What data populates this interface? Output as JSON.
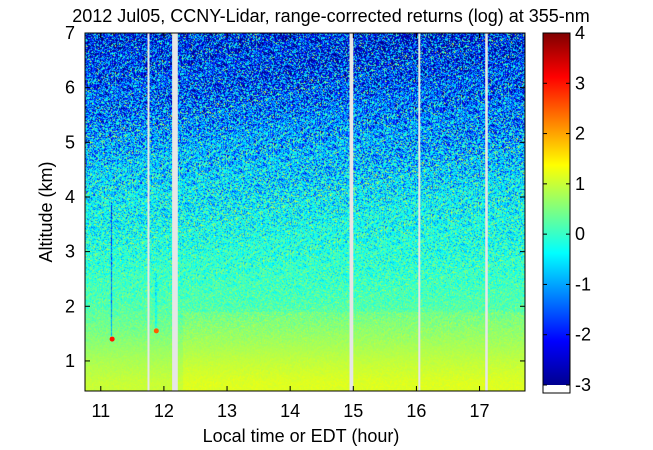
{
  "chart_data": {
    "type": "heatmap",
    "title": "2012 Jul05, CCNY-Lidar, range-corrected returns (log) at 355-nm",
    "xlabel": "Local time or EDT (hour)",
    "ylabel": "Altitude (km)",
    "xlim": [
      10.75,
      17.72
    ],
    "ylim": [
      0.45,
      7.0
    ],
    "x_ticks": [
      11,
      12,
      13,
      14,
      15,
      16,
      17
    ],
    "x_tick_labels": [
      "11",
      "12",
      "13",
      "14",
      "15",
      "16",
      "17"
    ],
    "y_ticks": [
      1,
      2,
      3,
      4,
      5,
      6,
      7
    ],
    "y_tick_labels": [
      "1",
      "2",
      "3",
      "4",
      "5",
      "6",
      "7"
    ],
    "colorbar": {
      "range": [
        -3,
        4
      ],
      "ticks": [
        -3,
        -2,
        -1,
        0,
        1,
        2,
        3,
        4
      ],
      "tick_labels": [
        "-3",
        "-2",
        "-1",
        "0",
        "1",
        "2",
        "3",
        "4"
      ],
      "colormap": "jet",
      "nodata_color": "#ffffff"
    },
    "data_gaps_hours": [
      [
        11.74,
        11.77
      ],
      [
        12.13,
        12.22
      ],
      [
        14.94,
        15.0
      ],
      [
        16.03,
        16.05
      ],
      [
        17.09,
        17.13
      ]
    ],
    "approximate_profile": [
      {
        "altitude_km": 0.6,
        "value": 1.0
      },
      {
        "altitude_km": 1.0,
        "value": 0.8
      },
      {
        "altitude_km": 1.5,
        "value": 0.5
      },
      {
        "altitude_km": 2.0,
        "value": 0.2
      },
      {
        "altitude_km": 3.0,
        "value": -0.1
      },
      {
        "altitude_km": 4.0,
        "value": -0.4
      },
      {
        "altitude_km": 5.0,
        "value": -0.9
      },
      {
        "altitude_km": 6.0,
        "value": -1.5
      },
      {
        "altitude_km": 7.0,
        "value": -2.0
      }
    ],
    "cloud_features": [
      {
        "time_hour": 11.18,
        "altitude_km": 1.4,
        "value": 3.0
      },
      {
        "time_hour": 11.88,
        "altitude_km": 1.55,
        "value": 2.5
      }
    ],
    "colors": {
      "high": "#b40000",
      "mid_high": "#ffd200",
      "mid": "#c8ff3c",
      "low_mid": "#3cffd2",
      "low": "#00a0ff",
      "very_low": "#000090"
    }
  }
}
